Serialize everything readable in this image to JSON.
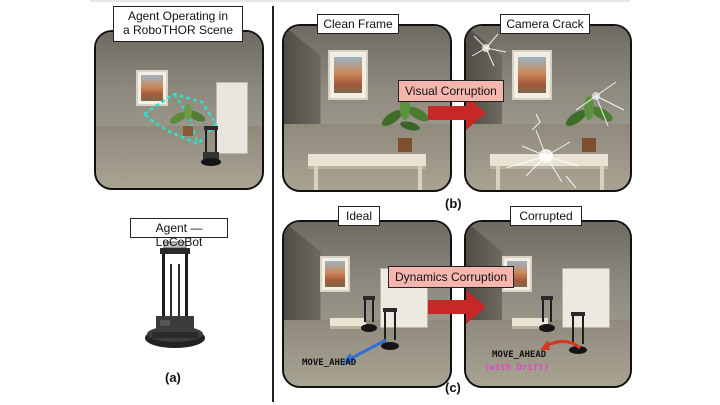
{
  "panel_a": {
    "scene_label": "Agent Operating in a RoboTHOR Scene",
    "scene_label_line1": "Agent Operating in",
    "scene_label_line2": "a RoboTHOR Scene",
    "agent_label": "Agent — LoCoBot",
    "caption": "(a)"
  },
  "panel_b": {
    "left_label": "Clean Frame",
    "right_label": "Camera Crack",
    "corruption_label": "Visual Corruption",
    "caption": "(b)"
  },
  "panel_c": {
    "left_label": "Ideal",
    "right_label": "Corrupted",
    "corruption_label": "Dynamics Corruption",
    "left_command": "MOVE_AHEAD",
    "right_command": "MOVE_AHEAD",
    "right_command_note": "(with Drift)",
    "caption": "(c)"
  },
  "colors": {
    "arrow": "#c62828",
    "corruption_box": "#f6b6b0",
    "ideal_arrow": "#2f6fd6",
    "drift_arrow": "#d8361f",
    "drift_text": "#e04cc6",
    "navmesh": "#2fe0c8"
  }
}
